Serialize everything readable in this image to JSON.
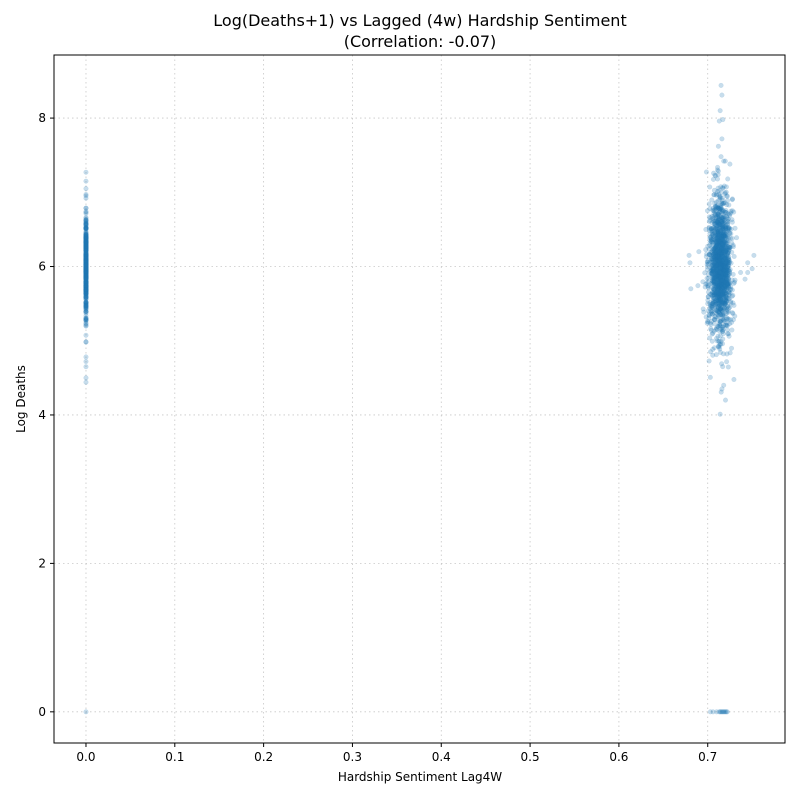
{
  "chart_data": {
    "type": "scatter",
    "title": "Log(Deaths+1) vs Lagged (4w) Hardship Sentiment",
    "subtitle": "(Correlation: -0.07)",
    "xlabel": "Hardship Sentiment Lag4W",
    "ylabel": "Log Deaths",
    "xlim": [
      -0.036,
      0.787
    ],
    "ylim": [
      -0.42,
      8.85
    ],
    "xticks": [
      0.0,
      0.1,
      0.2,
      0.3,
      0.4,
      0.5,
      0.6,
      0.7
    ],
    "xtick_labels": [
      "0.0",
      "0.1",
      "0.2",
      "0.3",
      "0.4",
      "0.5",
      "0.6",
      "0.7"
    ],
    "yticks": [
      0,
      2,
      4,
      6,
      8
    ],
    "ytick_labels": [
      "0",
      "2",
      "4",
      "6",
      "8"
    ],
    "grid": true,
    "legend": "none",
    "marker_color": "#1f77b4",
    "marker_alpha": 0.25,
    "clusters": [
      {
        "name": "zero-sentiment",
        "x_center": 0.0,
        "x_spread": 0.0,
        "y_center": 6.0,
        "y_spread": 0.35,
        "y_min": 4.4,
        "y_max": 7.3,
        "count": 450
      },
      {
        "name": "high-sentiment",
        "x_center": 0.714,
        "x_spread": 0.006,
        "y_center": 6.0,
        "y_spread": 0.45,
        "y_min": 4.0,
        "y_max": 8.45,
        "count": 1500
      }
    ],
    "points": [
      [
        0.0,
        7.27
      ],
      [
        0.0,
        7.15
      ],
      [
        0.0,
        7.05
      ],
      [
        0.0,
        6.92
      ],
      [
        0.0,
        4.98
      ],
      [
        0.0,
        4.72
      ],
      [
        0.0,
        4.65
      ],
      [
        0.0,
        4.5
      ],
      [
        0.0,
        4.44
      ],
      [
        0.0,
        0.0
      ],
      [
        0.715,
        8.44
      ],
      [
        0.716,
        8.31
      ],
      [
        0.714,
        8.1
      ],
      [
        0.717,
        7.98
      ],
      [
        0.713,
        7.96
      ],
      [
        0.716,
        7.72
      ],
      [
        0.712,
        7.62
      ],
      [
        0.715,
        7.48
      ],
      [
        0.718,
        7.42
      ],
      [
        0.711,
        7.3
      ],
      [
        0.725,
        7.38
      ],
      [
        0.718,
        4.4
      ],
      [
        0.716,
        4.35
      ],
      [
        0.72,
        4.2
      ],
      [
        0.714,
        4.01
      ],
      [
        0.681,
        5.7
      ],
      [
        0.679,
        6.15
      ],
      [
        0.68,
        6.05
      ],
      [
        0.69,
        6.2
      ],
      [
        0.745,
        5.92
      ],
      [
        0.75,
        5.97
      ],
      [
        0.752,
        6.15
      ],
      [
        0.742,
        5.83
      ],
      [
        0.737,
        5.92
      ],
      [
        0.745,
        6.05
      ],
      [
        0.713,
        0.0
      ],
      [
        0.715,
        0.0
      ],
      [
        0.716,
        0.0
      ],
      [
        0.717,
        0.0
      ],
      [
        0.718,
        0.0
      ],
      [
        0.719,
        0.0
      ],
      [
        0.72,
        0.0
      ],
      [
        0.721,
        0.0
      ],
      [
        0.722,
        0.0
      ],
      [
        0.714,
        0.0
      ],
      [
        0.71,
        0.0
      ],
      [
        0.706,
        0.0
      ],
      [
        0.703,
        0.0
      ]
    ]
  }
}
